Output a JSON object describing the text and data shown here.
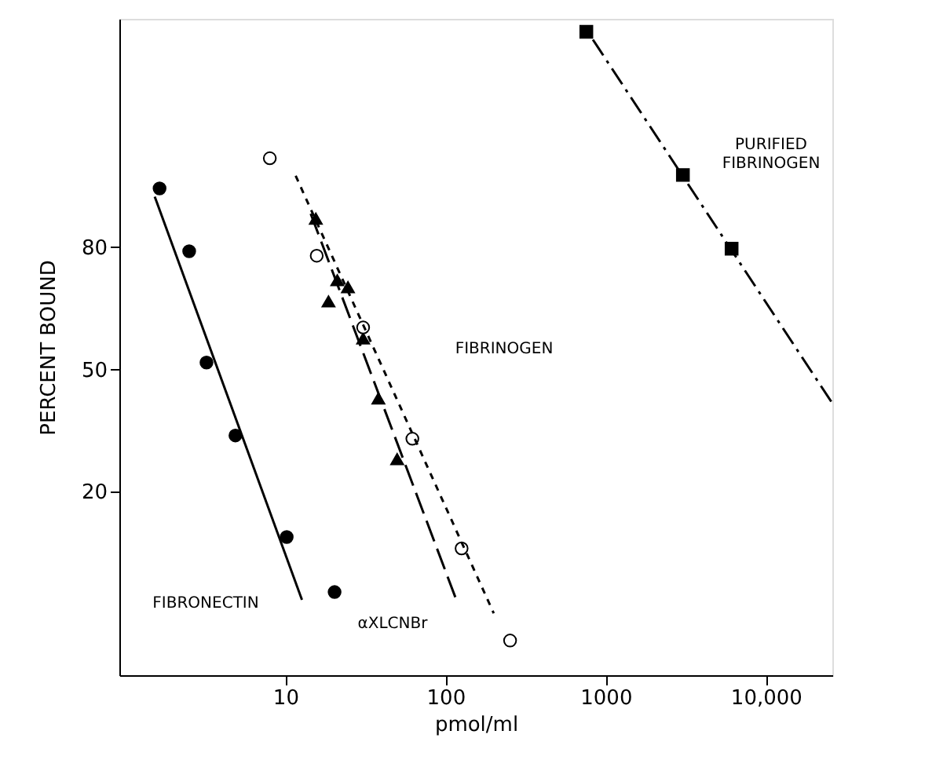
{
  "chart_data": {
    "type": "scatter",
    "xlabel": "pmol/ml",
    "ylabel": "PERCENT BOUND",
    "log": "x",
    "xlim": [
      0.92,
      26000
    ],
    "ylim": [
      -25,
      136
    ],
    "xticks": [
      10,
      100,
      1000,
      {
        "value": 10000,
        "label": "10,000"
      }
    ],
    "yticks": [
      20,
      50,
      80
    ],
    "grid": false,
    "series": [
      {
        "marker": "circle",
        "color": "#000000",
        "x": [
          1.64,
          2.51,
          3.22,
          4.88,
          10.2,
          20.3
        ],
        "values": [
          94.4,
          79,
          51.7,
          33.8,
          8.9,
          -4.6
        ]
      },
      {
        "type": "line",
        "line_style": "solid",
        "color": "#000000",
        "x": [
          1.53,
          12.7
        ],
        "values": [
          92.4,
          -6.5
        ]
      },
      {
        "marker": "triangle",
        "color": "#000000",
        "x": [
          15.5,
          18.6,
          21.1,
          24.6,
          30.6,
          38.1,
          49.9
        ],
        "values": [
          87.0,
          66.7,
          71.9,
          70.2,
          57.6,
          42.9,
          28.0
        ]
      },
      {
        "type": "line",
        "line_style": "dashed",
        "color": "#000000",
        "x": [
          14.4,
          116
        ],
        "values": [
          88.2,
          -6.2
        ]
      },
      {
        "marker": "circle",
        "color": "#ffffff",
        "x": [
          8.0,
          15.7,
          30.6,
          62.1,
          126,
          253
        ],
        "values": [
          101.8,
          77.9,
          60.3,
          33.0,
          6.1,
          -16.5
        ]
      },
      {
        "type": "line",
        "line_style": "dotted",
        "color": "#000000",
        "x": [
          11.6,
          200
        ],
        "values": [
          97.5,
          -9.8
        ]
      },
      {
        "marker": "square",
        "color": "#000000",
        "x": [
          757,
          3034,
          6110
        ],
        "values": [
          132.8,
          97.7,
          79.6
        ]
      },
      {
        "type": "line",
        "line_style": "dashdot",
        "color": "#000000",
        "x": [
          832,
          25700
        ],
        "values": [
          130.9,
          42
        ]
      }
    ],
    "annotations": [
      "FIBRONECTIN",
      "αXLCNBr",
      "FIBRINOGEN",
      "PURIFIED\nFIBRINOGEN"
    ]
  }
}
